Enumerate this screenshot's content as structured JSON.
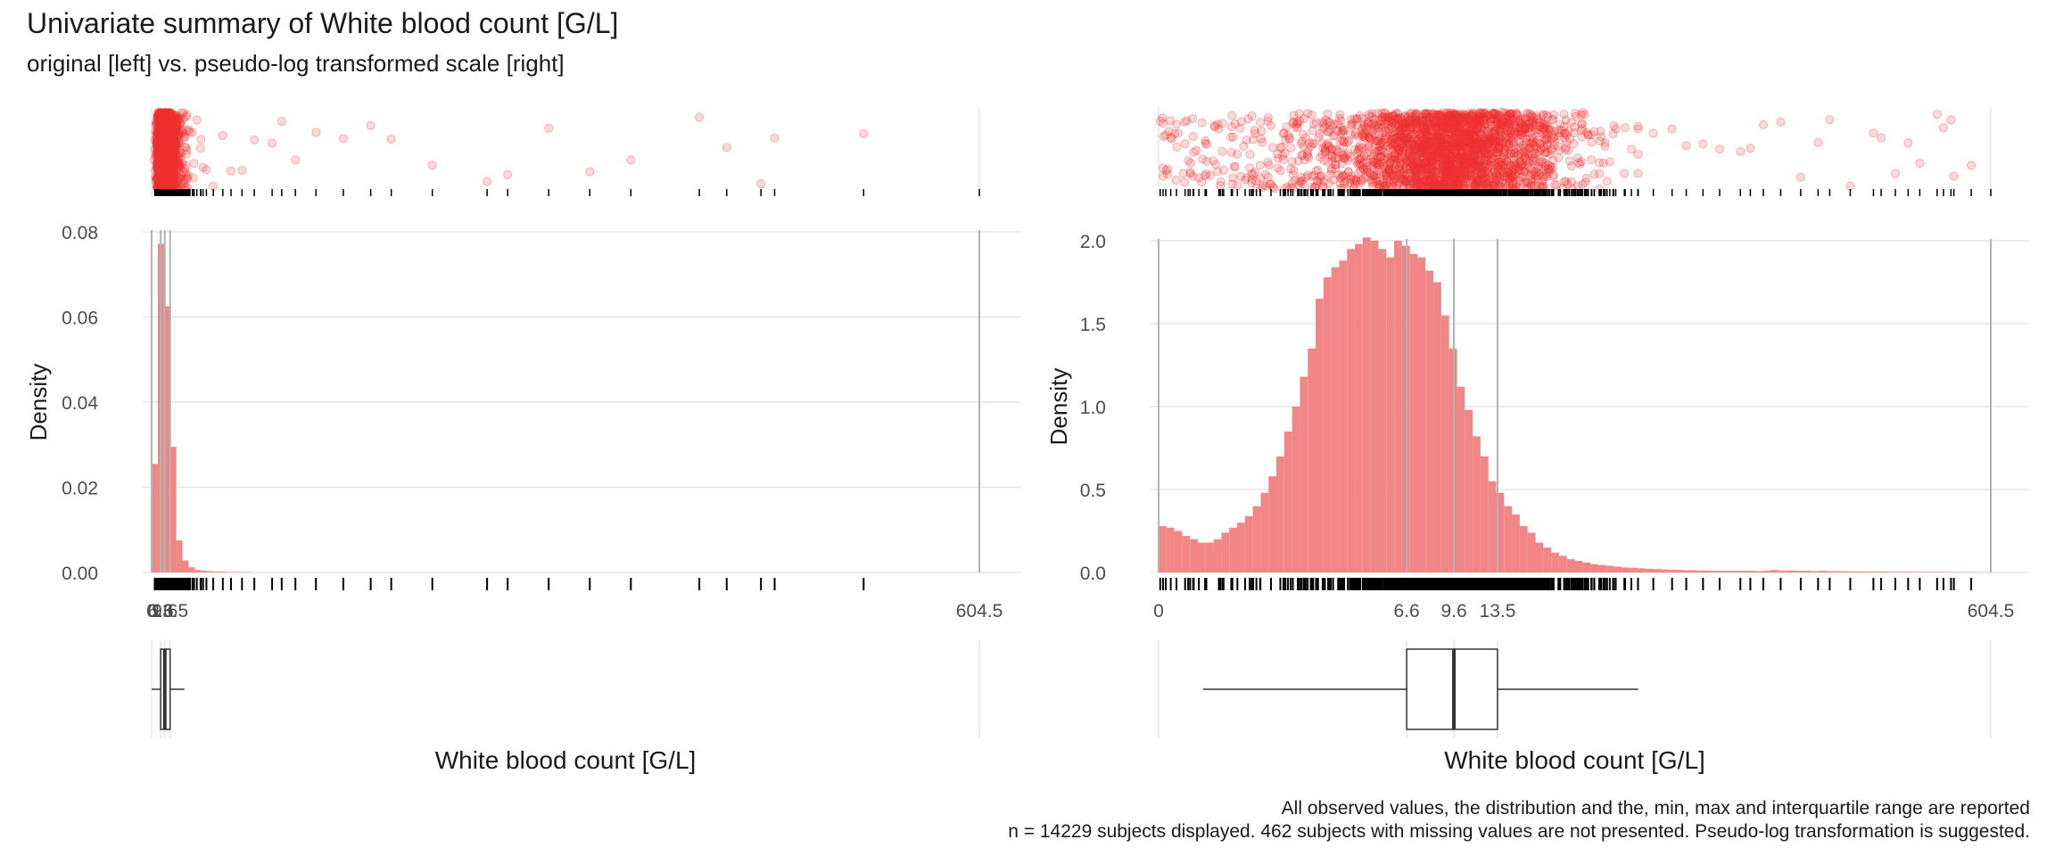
{
  "title": "Univariate summary of White blood count [G/L]",
  "subtitle": "original [left] vs. pseudo-log transformed scale [right]",
  "caption": [
    "All observed values, the distribution and the, min, max and interquartile range are reported",
    "n = 14229 subjects displayed. 462 subjects with missing values are not presented. Pseudo-log transformation is suggested."
  ],
  "colors": {
    "hist": "#f08080",
    "points": "#f03030",
    "grid": "#e5e5e5",
    "refline": "#b3b3b3"
  },
  "chart_data": [
    {
      "type": "bar",
      "panel": "left",
      "scale": "original",
      "xlabel": "White blood count [G/L]",
      "ylabel": "Density",
      "xlim": [
        0,
        604.5
      ],
      "ylim": [
        0,
        0.08
      ],
      "yticks": [
        0,
        0.02,
        0.04,
        0.06,
        0.08
      ],
      "ytick_labels": [
        "0.00",
        "0.02",
        "0.04",
        "0.06",
        "0.08"
      ],
      "xticks": [
        0,
        6.6,
        9.6,
        13.5,
        604.5
      ],
      "xtick_labels": [
        "0",
        "6.6",
        "9.6",
        "13.5",
        "604.5"
      ],
      "summary": {
        "min": 0,
        "q1": 6.6,
        "median": 9.6,
        "q3": 13.5,
        "max": 604.5,
        "whisker_high": 24.0
      },
      "bin_width": 4.5,
      "bins_start": 0,
      "values": [
        0.0255,
        0.0772,
        0.0625,
        0.0295,
        0.0075,
        0.0028,
        0.0012,
        0.0006,
        0.0004,
        0.0003,
        0.0002,
        0.0002,
        0.0001,
        0.0001,
        0.0001,
        0.0001
      ]
    },
    {
      "type": "bar",
      "panel": "right",
      "scale": "pseudo-log",
      "xlabel": "White blood count [G/L]",
      "ylabel": "Density",
      "xlim": [
        0,
        604.5
      ],
      "ylim": [
        0,
        2.0
      ],
      "yticks": [
        0,
        0.5,
        1.0,
        1.5,
        2.0
      ],
      "ytick_labels": [
        "0.0",
        "0.5",
        "1.0",
        "1.5",
        "2.0"
      ],
      "xticks": [
        0,
        6.6,
        9.6,
        13.5,
        604.5
      ],
      "xtick_labels": [
        "0",
        "6.6",
        "9.6",
        "13.5",
        "604.5"
      ],
      "summary": {
        "min": 0,
        "q1": 6.6,
        "median": 9.6,
        "q3": 13.5,
        "max": 604.5,
        "whisker_low": 0.7,
        "whisker_high": 40.0
      },
      "values": [
        0.28,
        0.27,
        0.25,
        0.22,
        0.2,
        0.18,
        0.18,
        0.2,
        0.24,
        0.27,
        0.3,
        0.34,
        0.4,
        0.48,
        0.58,
        0.7,
        0.85,
        1.0,
        1.18,
        1.35,
        1.65,
        1.78,
        1.84,
        1.88,
        1.95,
        1.98,
        2.02,
        2.0,
        1.95,
        1.9,
        2.0,
        1.97,
        1.92,
        1.9,
        1.82,
        1.75,
        1.55,
        1.35,
        1.12,
        0.98,
        0.82,
        0.7,
        0.55,
        0.48,
        0.4,
        0.35,
        0.28,
        0.24,
        0.18,
        0.15,
        0.12,
        0.1,
        0.08,
        0.07,
        0.06,
        0.05,
        0.045,
        0.04,
        0.035,
        0.03,
        0.028,
        0.025,
        0.022,
        0.02,
        0.018,
        0.016,
        0.015,
        0.013,
        0.012,
        0.011,
        0.01,
        0.01,
        0.01,
        0.01,
        0.01,
        0.01,
        0.008,
        0.01,
        0.015,
        0.01,
        0.012,
        0.01,
        0.01,
        0.008,
        0.01,
        0.008,
        0.008,
        0.007,
        0.006,
        0.006,
        0.005,
        0.005,
        0.005,
        0.004,
        0.004,
        0.004,
        0.003,
        0.003,
        0.003,
        0.003,
        0.002,
        0.002,
        0.002,
        0.002,
        0.001,
        0.001
      ]
    }
  ]
}
